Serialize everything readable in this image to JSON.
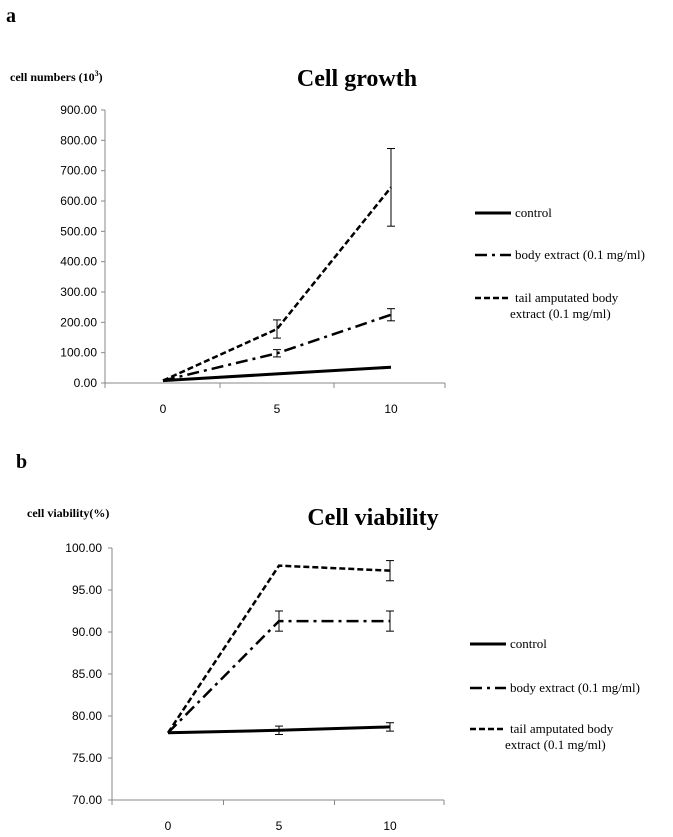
{
  "chart_data": [
    {
      "panel": "a",
      "type": "line",
      "title": "Cell growth",
      "ylabel": "cell numbers (10",
      "ylabel_sup": "3",
      "ylabel_close": ")",
      "xlabel": "",
      "x": [
        0,
        5,
        10
      ],
      "categories": [
        "0",
        "5",
        "10"
      ],
      "ylim": [
        0,
        900
      ],
      "yticks": [
        "0.00",
        "100.00",
        "200.00",
        "300.00",
        "400.00",
        "500.00",
        "600.00",
        "700.00",
        "800.00",
        "900.00"
      ],
      "series": [
        {
          "name": "control",
          "style": "solid",
          "values": [
            8,
            30,
            52
          ],
          "errors": [
            0,
            0,
            0
          ]
        },
        {
          "name": "body extract (0.1 mg/ml)",
          "style": "dashdot",
          "values": [
            8,
            98,
            225
          ],
          "errors": [
            0,
            12,
            20
          ]
        },
        {
          "name": "tail amputated body extract (0.1 mg/ml)",
          "legend_lines": [
            "tail amputated body",
            "extract (0.1 mg/ml)"
          ],
          "style": "dashed",
          "values": [
            8,
            178,
            645
          ],
          "errors": [
            0,
            30,
            128
          ]
        }
      ],
      "legend_position": "right",
      "grid": false
    },
    {
      "panel": "b",
      "type": "line",
      "title": "Cell viability",
      "ylabel": "cell viability(%)",
      "xlabel": "",
      "x": [
        0,
        5,
        10
      ],
      "categories": [
        "0",
        "5",
        "10"
      ],
      "ylim": [
        70,
        100
      ],
      "yticks": [
        "70.00",
        "75.00",
        "80.00",
        "85.00",
        "90.00",
        "95.00",
        "100.00"
      ],
      "series": [
        {
          "name": "control",
          "style": "solid",
          "values": [
            78.0,
            78.3,
            78.7
          ],
          "errors": [
            0,
            0.5,
            0.5
          ]
        },
        {
          "name": "body extract (0.1 mg/ml)",
          "style": "dashdot",
          "values": [
            78.0,
            91.3,
            91.3
          ],
          "errors": [
            0,
            1.2,
            1.2
          ]
        },
        {
          "name": "tail amputated body extract (0.1 mg/ml)",
          "legend_lines": [
            "tail amputated body",
            "extract (0.1 mg/ml)"
          ],
          "style": "dashed",
          "values": [
            78.0,
            97.9,
            97.3
          ],
          "errors": [
            0,
            0,
            1.2
          ]
        }
      ],
      "legend_position": "right",
      "grid": false
    }
  ]
}
